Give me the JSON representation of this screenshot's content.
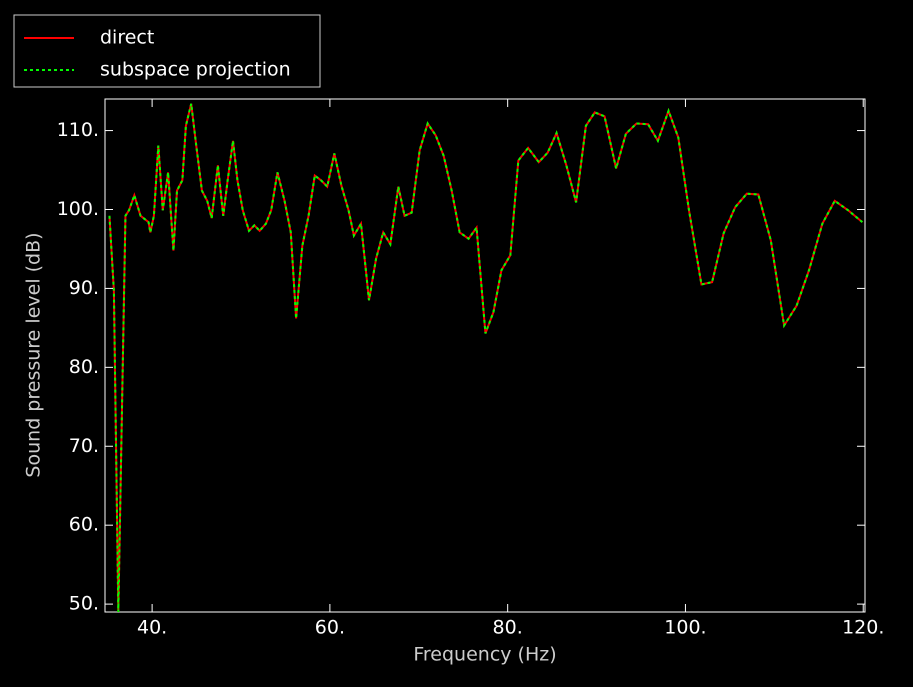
{
  "chart_data": {
    "type": "line",
    "xlabel": "Frequency (Hz)",
    "ylabel": "Sound pressure level (dB)",
    "legend": "upper left",
    "x": [
      35.2,
      35.7,
      36.2,
      37.0,
      37.4,
      38.0,
      38.7,
      39.6,
      39.8,
      40.2,
      40.7,
      41.2,
      41.8,
      42.4,
      42.8,
      43.4,
      43.8,
      44.4,
      44.9,
      45.6,
      46.2,
      46.7,
      47.4,
      48.0,
      48.5,
      49.1,
      49.6,
      50.2,
      50.9,
      51.5,
      52.1,
      52.8,
      53.4,
      54.1,
      54.9,
      55.6,
      56.2,
      56.9,
      57.6,
      58.3,
      59.0,
      59.7,
      60.5,
      61.3,
      62.1,
      62.7,
      63.5,
      64.4,
      65.2,
      66.0,
      66.8,
      67.7,
      68.4,
      69.2,
      70.1,
      71.0,
      71.9,
      72.8,
      73.7,
      74.6,
      75.6,
      76.5,
      77.5,
      78.4,
      79.3,
      80.3,
      81.2,
      82.3,
      83.5,
      84.5,
      85.5,
      86.6,
      87.7,
      88.8,
      89.8,
      90.9,
      92.2,
      93.3,
      94.5,
      95.8,
      96.9,
      98.1,
      99.2,
      100.4,
      101.8,
      103.0,
      104.3,
      105.6,
      106.9,
      108.2,
      109.6,
      111.1,
      112.5,
      113.9,
      115.4,
      116.8,
      118.3,
      119.9
    ],
    "series": [
      {
        "name": "direct",
        "color": "#ff0000",
        "linestyle": "solid",
        "values": [
          99.2,
          89.7,
          49,
          99.2,
          99.9,
          101.8,
          99.2,
          98.4,
          97.1,
          99.2,
          108.1,
          99.9,
          104.7,
          94.8,
          102.4,
          103.7,
          110.6,
          113.4,
          108.7,
          102.4,
          101.1,
          98.9,
          105.6,
          99.2,
          103.7,
          108.7,
          103.7,
          99.9,
          97.3,
          98.0,
          97.3,
          98.2,
          99.9,
          104.7,
          101.1,
          97.1,
          86.2,
          95.4,
          99.2,
          104.3,
          103.7,
          102.9,
          107.1,
          103.0,
          99.9,
          96.7,
          98.2,
          88.5,
          93.8,
          97.1,
          95.6,
          102.9,
          99.2,
          99.6,
          107.5,
          110.9,
          109.4,
          106.8,
          102.4,
          97.1,
          96.3,
          97.7,
          84.3,
          87.0,
          92.3,
          94.2,
          106.2,
          107.8,
          106.0,
          107.2,
          109.7,
          105.6,
          100.9,
          110.6,
          112.3,
          111.8,
          105.2,
          109.6,
          110.9,
          110.8,
          108.7,
          112.5,
          109.1,
          99.9,
          90.5,
          90.8,
          97.0,
          100.3,
          102.0,
          101.9,
          96.1,
          85.3,
          87.8,
          92.3,
          98.2,
          101.1,
          99.9,
          98.4
        ]
      },
      {
        "name": "subspace projection",
        "color": "#00ff00",
        "linestyle": "dashed",
        "values": [
          99.2,
          89.7,
          49,
          99.2,
          99.9,
          101.8,
          99.2,
          98.4,
          97.1,
          99.2,
          108.1,
          99.9,
          104.7,
          94.8,
          102.4,
          103.7,
          110.6,
          113.4,
          108.7,
          102.4,
          101.1,
          98.9,
          105.6,
          99.2,
          103.7,
          108.7,
          103.7,
          99.9,
          97.3,
          98.0,
          97.3,
          98.2,
          99.9,
          104.7,
          101.1,
          97.1,
          86.2,
          95.4,
          99.2,
          104.3,
          103.7,
          102.9,
          107.1,
          103.0,
          99.9,
          96.7,
          98.2,
          88.5,
          93.8,
          97.1,
          95.6,
          102.9,
          99.2,
          99.6,
          107.5,
          110.9,
          109.4,
          106.8,
          102.4,
          97.1,
          96.3,
          97.7,
          84.3,
          87.0,
          92.3,
          94.2,
          106.2,
          107.8,
          106.0,
          107.2,
          109.7,
          105.6,
          100.9,
          110.6,
          112.3,
          111.8,
          105.2,
          109.6,
          110.9,
          110.8,
          108.7,
          112.5,
          109.1,
          99.9,
          90.5,
          90.8,
          97.0,
          100.3,
          102.0,
          101.9,
          96.1,
          85.3,
          87.8,
          92.3,
          98.2,
          101.1,
          99.9,
          98.4
        ]
      }
    ],
    "xlim": [
      34.7,
      120.2
    ],
    "ylim": [
      49,
      114
    ],
    "xticks": [
      {
        "value": 40,
        "label": "40."
      },
      {
        "value": 60,
        "label": "60."
      },
      {
        "value": 80,
        "label": "80."
      },
      {
        "value": 100,
        "label": "100."
      },
      {
        "value": 120,
        "label": "120."
      }
    ],
    "yticks": [
      {
        "value": 50,
        "label": "50."
      },
      {
        "value": 60,
        "label": "60."
      },
      {
        "value": 70,
        "label": "70."
      },
      {
        "value": 80,
        "label": "80."
      },
      {
        "value": 90,
        "label": "90."
      },
      {
        "value": 100,
        "label": "100."
      },
      {
        "value": 110,
        "label": "110."
      }
    ]
  }
}
